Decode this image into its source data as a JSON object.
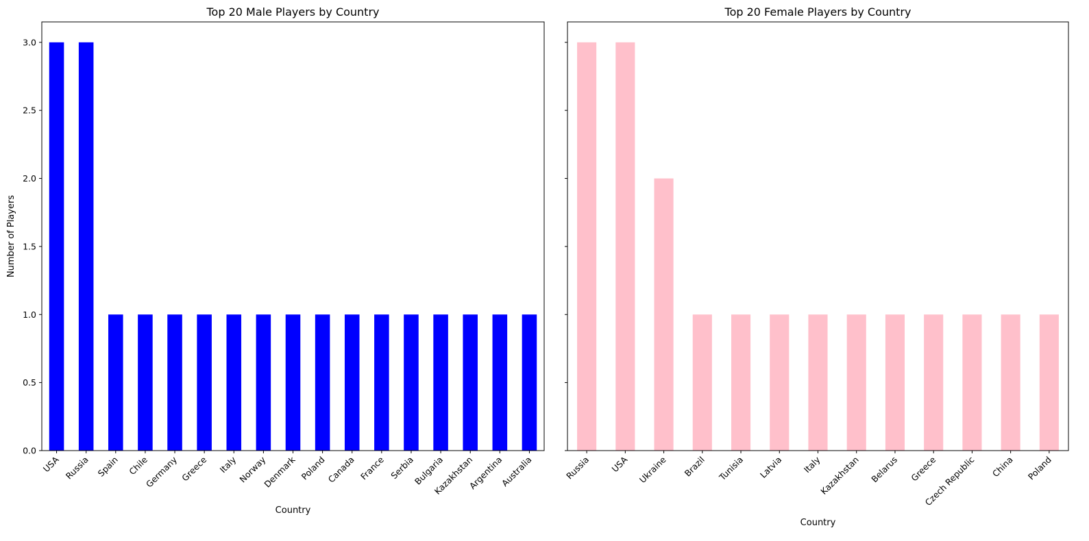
{
  "chart_data": [
    {
      "type": "bar",
      "title": "Top 20 Male Players by Country",
      "xlabel": "Country",
      "ylabel": "Number of Players",
      "categories": [
        "USA",
        "Russia",
        "Spain",
        "Chile",
        "Germany",
        "Greece",
        "Italy",
        "Norway",
        "Denmark",
        "Poland",
        "Canada",
        "France",
        "Serbia",
        "Bulgaria",
        "Kazakhstan",
        "Argentina",
        "Australia"
      ],
      "values": [
        3,
        3,
        1,
        1,
        1,
        1,
        1,
        1,
        1,
        1,
        1,
        1,
        1,
        1,
        1,
        1,
        1
      ],
      "ylim": [
        0,
        3.15
      ],
      "yticks": [
        "0.0",
        "0.5",
        "1.0",
        "1.5",
        "2.0",
        "2.5",
        "3.0"
      ],
      "color": "#0000ff",
      "grid": false,
      "legend": "none"
    },
    {
      "type": "bar",
      "title": "Top 20 Female Players by Country",
      "xlabel": "Country",
      "ylabel": "",
      "categories": [
        "Russia",
        "USA",
        "Ukraine",
        "Brazil",
        "Tunisia",
        "Latvia",
        "Italy",
        "Kazakhstan",
        "Belarus",
        "Greece",
        "Czech Republic",
        "China",
        "Poland"
      ],
      "values": [
        3,
        3,
        2,
        1,
        1,
        1,
        1,
        1,
        1,
        1,
        1,
        1,
        1
      ],
      "ylim": [
        0,
        3.15
      ],
      "yticks": [],
      "color": "#ffc0cb",
      "grid": false,
      "legend": "none"
    }
  ]
}
